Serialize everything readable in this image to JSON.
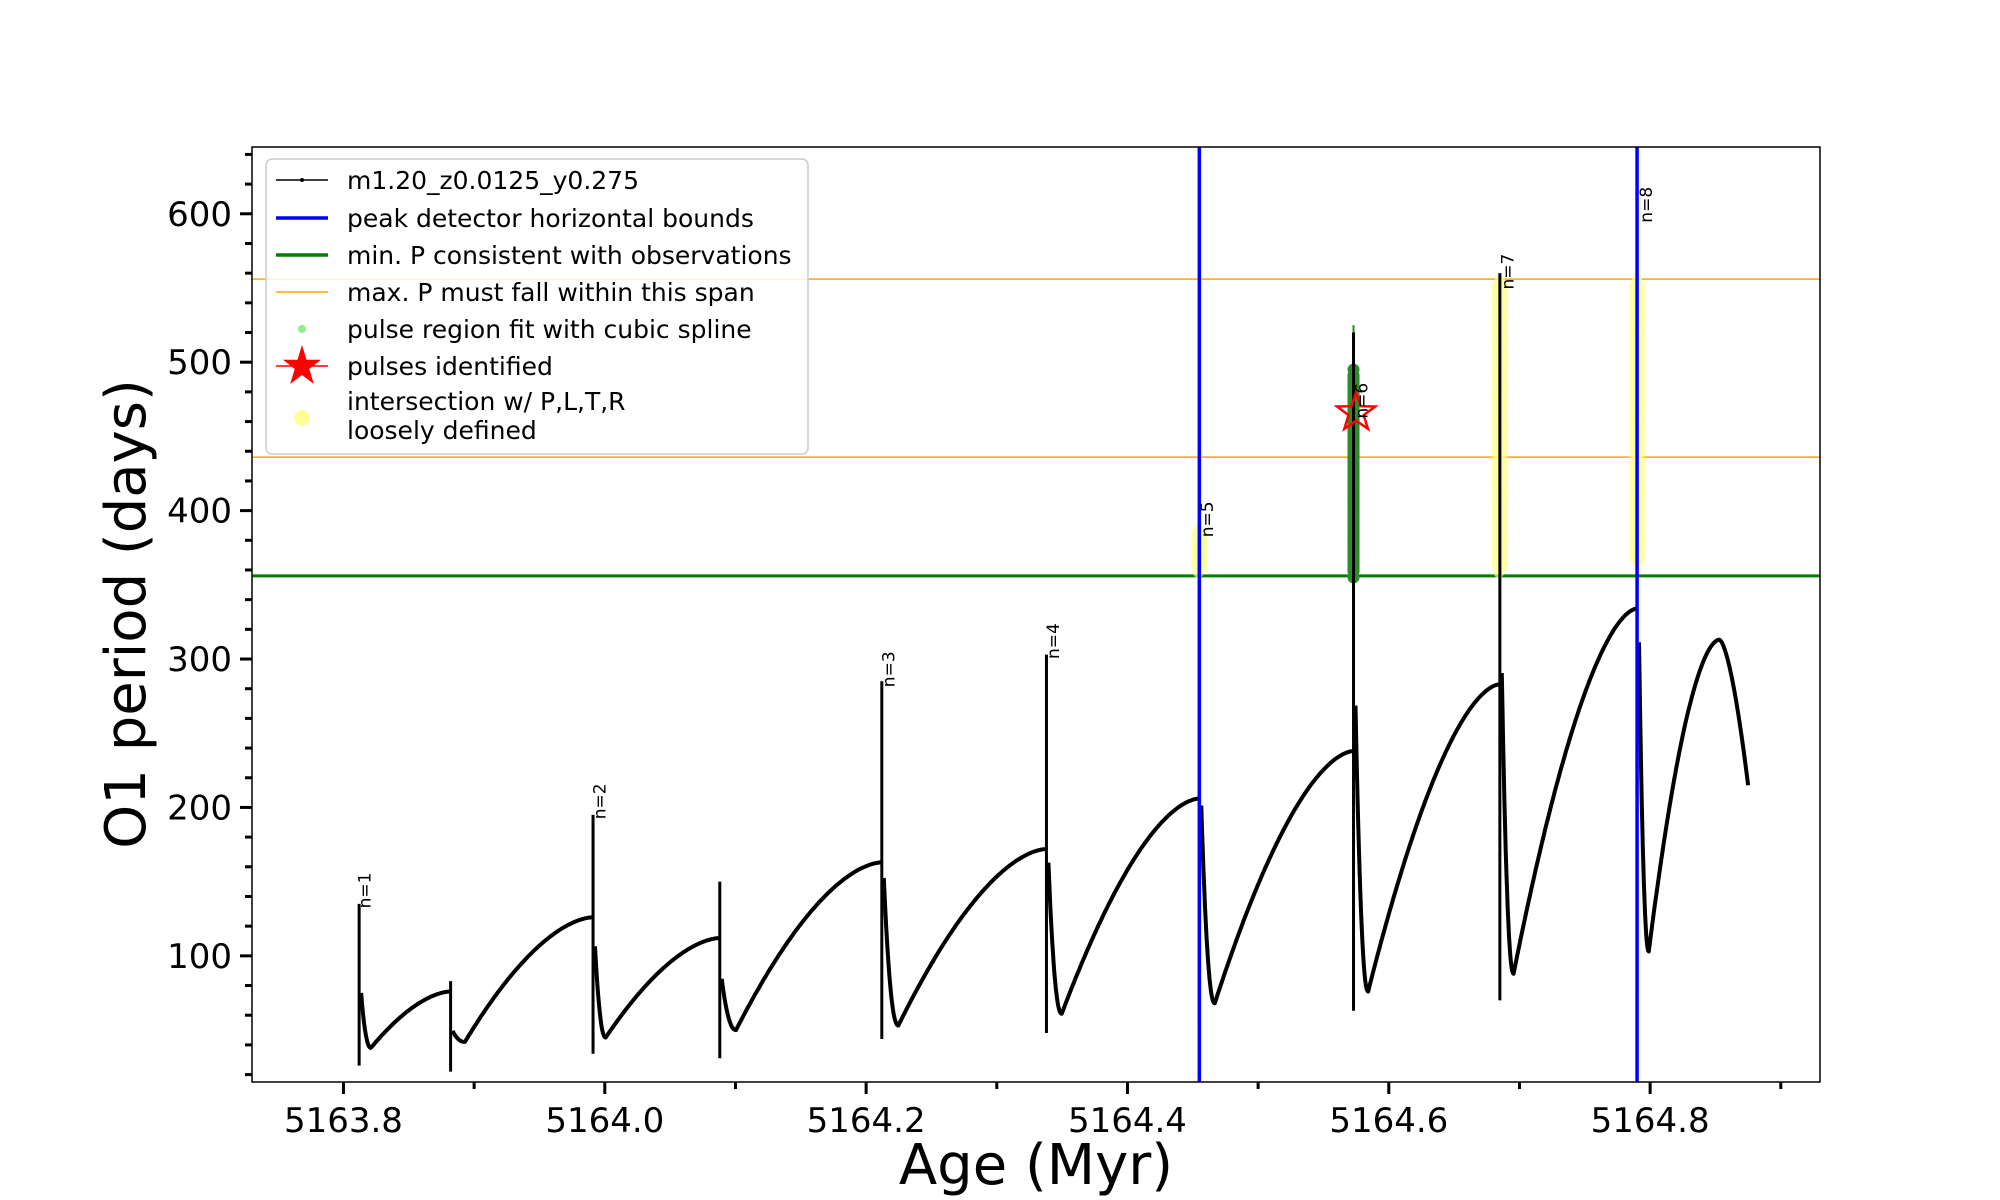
{
  "chart_data": {
    "type": "line",
    "title": "",
    "xlabel": "Age (Myr)",
    "ylabel": "O1 period (days)",
    "xlim": [
      5163.73,
      5164.93
    ],
    "ylim": [
      15,
      645
    ],
    "xticks": [
      5163.8,
      5164.0,
      5164.2,
      5164.4,
      5164.6,
      5164.8
    ],
    "xtick_labels": [
      "5163.8",
      "5164.0",
      "5164.2",
      "5164.4",
      "5164.6",
      "5164.8"
    ],
    "yticks": [
      100,
      200,
      300,
      400,
      500,
      600
    ],
    "ytick_labels": [
      "100",
      "200",
      "300",
      "400",
      "500",
      "600"
    ],
    "grid": false,
    "legend_position": "top-left",
    "legend": [
      {
        "label": "m1.20_z0.0125_y0.275",
        "kind": "line-marker",
        "color": "#000000"
      },
      {
        "label": "peak detector horizontal bounds",
        "kind": "line",
        "color": "#0000ff"
      },
      {
        "label": "min. P consistent with observations",
        "kind": "line",
        "color": "#008000"
      },
      {
        "label": "max. P must fall within this span",
        "kind": "thin-line",
        "color": "#ffa500"
      },
      {
        "label": "pulse region fit with cubic spline",
        "kind": "dot",
        "color": "#90ee90"
      },
      {
        "label": "pulses identified",
        "kind": "star",
        "color": "#ff0000"
      },
      {
        "label": "intersection w/ P,L,T,R",
        "label2": "loosely defined",
        "kind": "big-dot",
        "color": "#ffff99"
      }
    ],
    "vertical_lines": [
      {
        "x": 5164.455,
        "color": "#0000ff"
      },
      {
        "x": 5164.79,
        "color": "#0000ff"
      }
    ],
    "horizontal_lines": [
      {
        "y": 356,
        "color": "#008000",
        "width": 3
      },
      {
        "y": 436,
        "color": "#ffa500",
        "width": 1.5
      },
      {
        "y": 556,
        "color": "#ffa500",
        "width": 1.5
      }
    ],
    "series": [
      {
        "name": "m1.20_z0.0125_y0.275",
        "color": "#000000",
        "cycles": [
          {
            "x0": 5163.812,
            "x1": 5163.882,
            "spike": 135,
            "floor": 26,
            "min": 38,
            "end": 76
          },
          {
            "x0": 5163.882,
            "x1": 5163.991,
            "spike": 83,
            "floor": 22,
            "min": 42,
            "end": 126
          },
          {
            "x0": 5163.991,
            "x1": 5164.088,
            "spike": 195,
            "floor": 34,
            "min": 45,
            "end": 112
          },
          {
            "x0": 5164.088,
            "x1": 5164.212,
            "spike": 150,
            "floor": 31,
            "min": 50,
            "end": 163
          },
          {
            "x0": 5164.212,
            "x1": 5164.338,
            "spike": 285,
            "floor": 44,
            "min": 53,
            "end": 172
          },
          {
            "x0": 5164.338,
            "x1": 5164.455,
            "spike": 303,
            "floor": 48,
            "min": 61,
            "end": 206
          },
          {
            "x0": 5164.455,
            "x1": 5164.573,
            "spike": 380,
            "floor": 55,
            "min": 68,
            "end": 238
          },
          {
            "x0": 5164.573,
            "x1": 5164.685,
            "spike": 520,
            "floor": 63,
            "min": 76,
            "end": 283
          },
          {
            "x0": 5164.685,
            "x1": 5164.79,
            "spike": 560,
            "floor": 70,
            "min": 88,
            "end": 334
          },
          {
            "x0": 5164.79,
            "x1": 5164.875,
            "spike": 600,
            "floor": 75,
            "min": 103,
            "end": 215,
            "peak": 313,
            "peak_x": 5164.853
          }
        ]
      }
    ],
    "pulse_labels": [
      {
        "text": "n=1",
        "x": 5163.816,
        "y": 132
      },
      {
        "text": "n=2",
        "x": 5163.996,
        "y": 192
      },
      {
        "text": "n=3",
        "x": 5164.217,
        "y": 281
      },
      {
        "text": "n=4",
        "x": 5164.343,
        "y": 300
      },
      {
        "text": "n=5",
        "x": 5164.461,
        "y": 382
      },
      {
        "text": "n=6",
        "x": 5164.579,
        "y": 462
      },
      {
        "text": "n=7",
        "x": 5164.691,
        "y": 549
      },
      {
        "text": "n=8",
        "x": 5164.797,
        "y": 594
      }
    ],
    "spline_region": {
      "x": 5164.573,
      "y_min": 355,
      "y_max": 495
    },
    "yellow_regions": [
      {
        "x": 5164.455,
        "y_min": 358,
        "y_max": 388
      },
      {
        "x": 5164.685,
        "y_min": 358,
        "y_max": 556
      },
      {
        "x": 5164.79,
        "y_min": 364,
        "y_max": 556
      }
    ],
    "pulses_identified": [
      {
        "x": 5164.575,
        "y": 466
      }
    ]
  }
}
